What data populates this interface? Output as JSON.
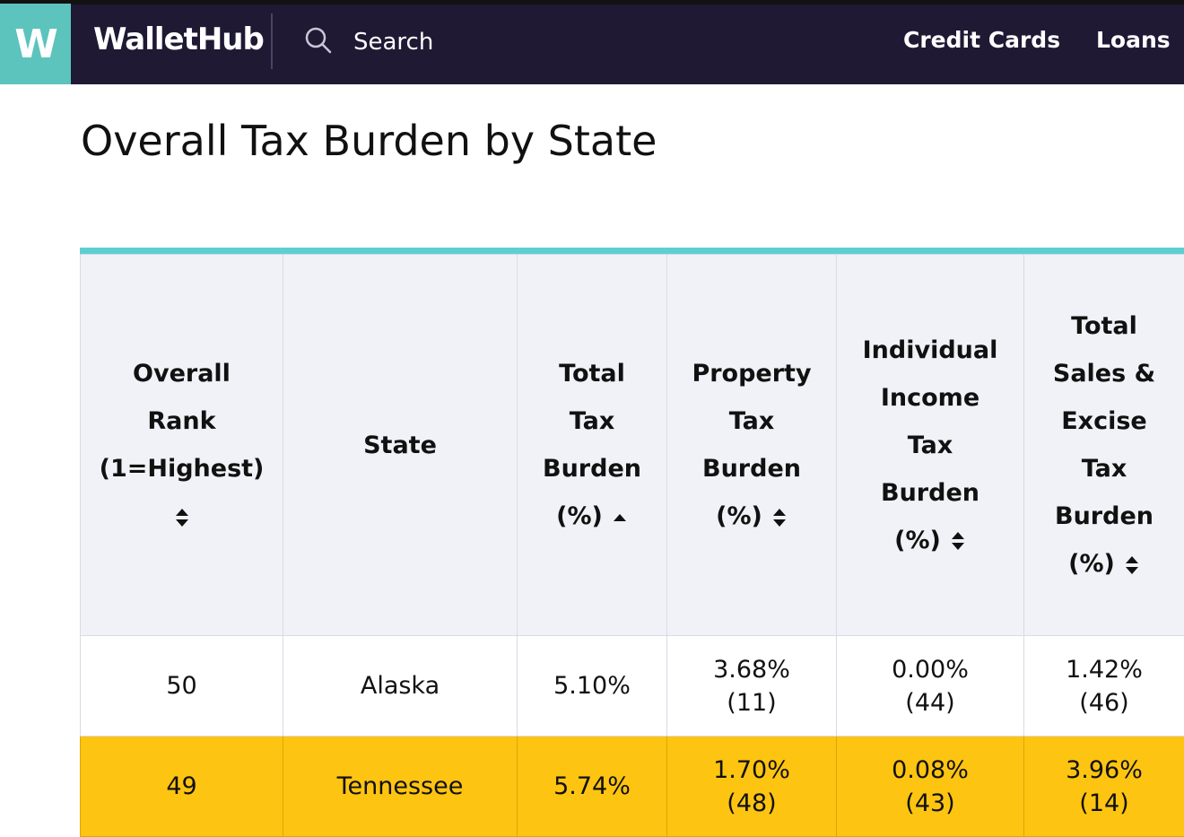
{
  "nav": {
    "logo_letter": "W",
    "brand": "WalletHub",
    "search_placeholder": "Search",
    "links": [
      "Credit Cards",
      "Loans"
    ]
  },
  "page": {
    "title": "Overall Tax Burden by State"
  },
  "table": {
    "headers": [
      {
        "lines": [
          "Overall",
          "Rank",
          "(1=Highest)"
        ],
        "sort": "both"
      },
      {
        "lines": [
          "State"
        ],
        "sort": "none"
      },
      {
        "lines": [
          "Total",
          "Tax",
          "Burden",
          "(%)"
        ],
        "sort": "asc"
      },
      {
        "lines": [
          "Property",
          "Tax",
          "Burden",
          "(%)"
        ],
        "sort": "both"
      },
      {
        "lines": [
          "Individual",
          "Income",
          "Tax",
          "Burden",
          "(%)"
        ],
        "sort": "both"
      },
      {
        "lines": [
          "Total",
          "Sales &",
          "Excise",
          "Tax",
          "Burden",
          "(%)"
        ],
        "sort": "both"
      }
    ],
    "rows": [
      {
        "rank": "50",
        "state": "Alaska",
        "total": "5.10%",
        "property": {
          "value": "3.68%",
          "rank": "(11)"
        },
        "income": {
          "value": "0.00%",
          "rank": "(44)"
        },
        "sales": {
          "value": "1.42%",
          "rank": "(46)"
        },
        "highlight": false
      },
      {
        "rank": "49",
        "state": "Tennessee",
        "total": "5.74%",
        "property": {
          "value": "1.70%",
          "rank": "(48)"
        },
        "income": {
          "value": "0.08%",
          "rank": "(43)"
        },
        "sales": {
          "value": "3.96%",
          "rank": "(14)"
        },
        "highlight": true
      }
    ]
  },
  "colors": {
    "nav_bg": "#1f1934",
    "logo_teal": "#5cc3bd",
    "table_accent": "#5ccfd3",
    "highlight_row": "#fdc411"
  }
}
